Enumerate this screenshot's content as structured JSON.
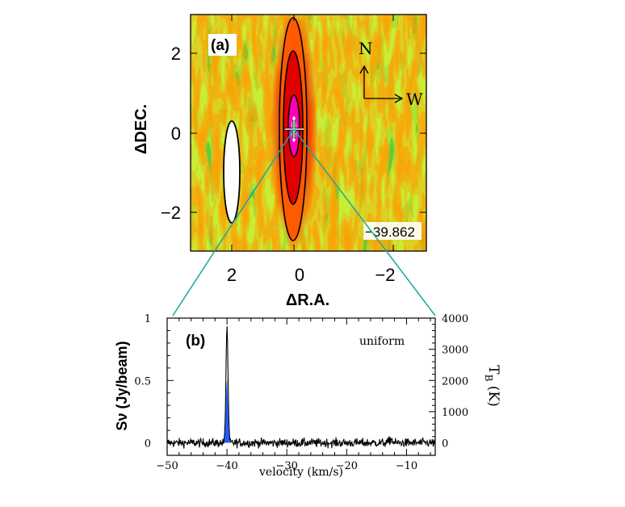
{
  "chart_data": [
    {
      "type": "heatmap",
      "panel_label": "(a)",
      "xlabel": "ΔR.A.",
      "ylabel": "ΔDEC.",
      "x_ticks": [
        "2",
        "0",
        "−2"
      ],
      "x_tick_values": [
        2,
        0,
        -2
      ],
      "y_ticks": [
        "2",
        "0",
        "−2"
      ],
      "y_tick_values": [
        2,
        0,
        -2
      ],
      "xlim": [
        3.2,
        -3.0
      ],
      "ylim": [
        -3.0,
        3.0
      ],
      "x_reversed": true,
      "annotation": "−39.862",
      "compass": {
        "north": "N",
        "west": "W"
      },
      "source_position": [
        0.35,
        0.1
      ],
      "beam_center": [
        2.0,
        -1.0
      ],
      "colormap": [
        "#14c832",
        "#c8f03c",
        "#ff7800",
        "#e60000",
        "#ff00c8",
        "#ffffff"
      ]
    },
    {
      "type": "line",
      "panel_label": "(b)",
      "annotation": "uniform",
      "xlabel": "velocity (km/s)",
      "ylabel": "Sν (Jy/beam)",
      "ylabel_right": "T_B (K)",
      "x_ticks": [
        "−50",
        "−40",
        "−30",
        "−20",
        "−10"
      ],
      "x_tick_values": [
        -50,
        -40,
        -30,
        -20,
        -10
      ],
      "y_ticks": [
        "0",
        "0.5",
        "1"
      ],
      "y_tick_values": [
        0,
        0.5,
        1
      ],
      "y2_ticks": [
        "0",
        "1000",
        "2000",
        "3000",
        "4000"
      ],
      "y2_tick_values": [
        0,
        1000,
        2000,
        3000,
        4000
      ],
      "xlim": [
        -50,
        -5.2
      ],
      "ylim": [
        -0.1,
        1.0
      ],
      "y2lim": [
        -400,
        4000
      ],
      "series": [
        {
          "peaks": [
            {
              "x": -40.0,
              "y": 0.93,
              "color": "#1f5fff"
            },
            {
              "x": -12.6,
              "y": 0.03,
              "color": "#d4158c"
            }
          ],
          "noise_rms": 0.025
        }
      ],
      "colors": {
        "line": "#000000",
        "peak_fill": "#1f5fff",
        "weak_fill": "#d4158c",
        "connector": "#1aa6a0"
      }
    }
  ]
}
